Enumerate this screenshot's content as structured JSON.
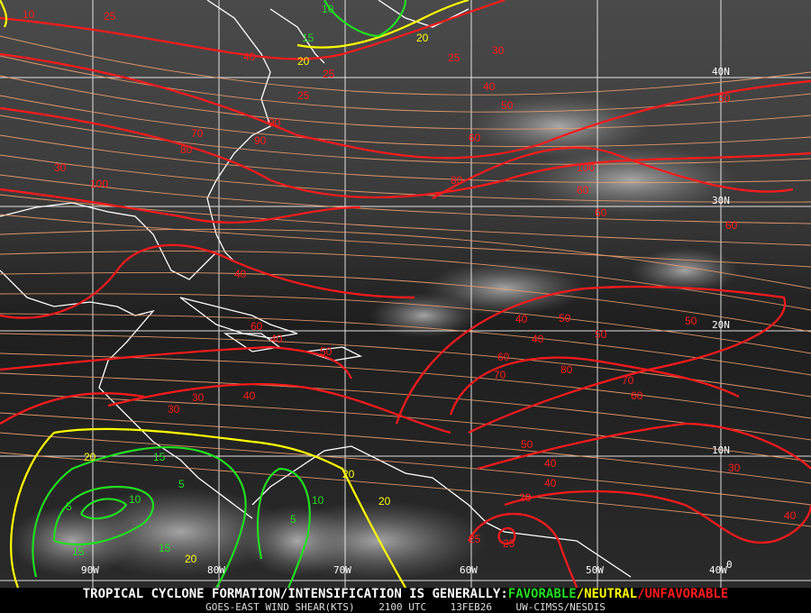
{
  "footer": {
    "headline_prefix": "TROPICAL CYCLONE FORMATION/INTENSIFICATION IS GENERALLY:",
    "favorable": "FAVORABLE",
    "sep1": "/",
    "neutral": "NEUTRAL",
    "sep2": "/",
    "unfavorable": "UNFAVORABLE",
    "product": "GOES-EAST WIND SHEAR(KTS)",
    "time": "2100 UTC",
    "date": "13FEB26",
    "credit": "UW-CIMSS/NESDIS"
  },
  "colors": {
    "favorable": "#22dd22",
    "neutral": "#ffff00",
    "unfavorable": "#ff1a1a",
    "streamlines": "#f0a070",
    "coastline": "#ffffff",
    "grid": "#ffffff"
  },
  "grid": {
    "longitudes": [
      "90W",
      "80W",
      "70W",
      "60W",
      "50W",
      "40W"
    ],
    "latitudes": [
      "40N",
      "30N",
      "20N",
      "10N",
      "0"
    ]
  },
  "contour_labels": [
    "10",
    "15",
    "20",
    "20",
    "25",
    "25",
    "25",
    "30",
    "40",
    "40",
    "50",
    "60",
    "70",
    "80",
    "90",
    "100",
    "100",
    "90",
    "80",
    "60",
    "60",
    "40",
    "60",
    "50",
    "40",
    "50",
    "60",
    "70",
    "80",
    "70",
    "60",
    "50",
    "40",
    "30",
    "40",
    "30",
    "30",
    "25",
    "20",
    "20",
    "15",
    "10",
    "5",
    "5",
    "10",
    "5",
    "15",
    "15",
    "10",
    "20",
    "30",
    "25",
    "25",
    "40",
    "60",
    "60",
    "40",
    "50",
    "40",
    "50",
    "40",
    "20",
    "20"
  ],
  "icons": [
    "coastline-map",
    "streamline-arrows"
  ]
}
